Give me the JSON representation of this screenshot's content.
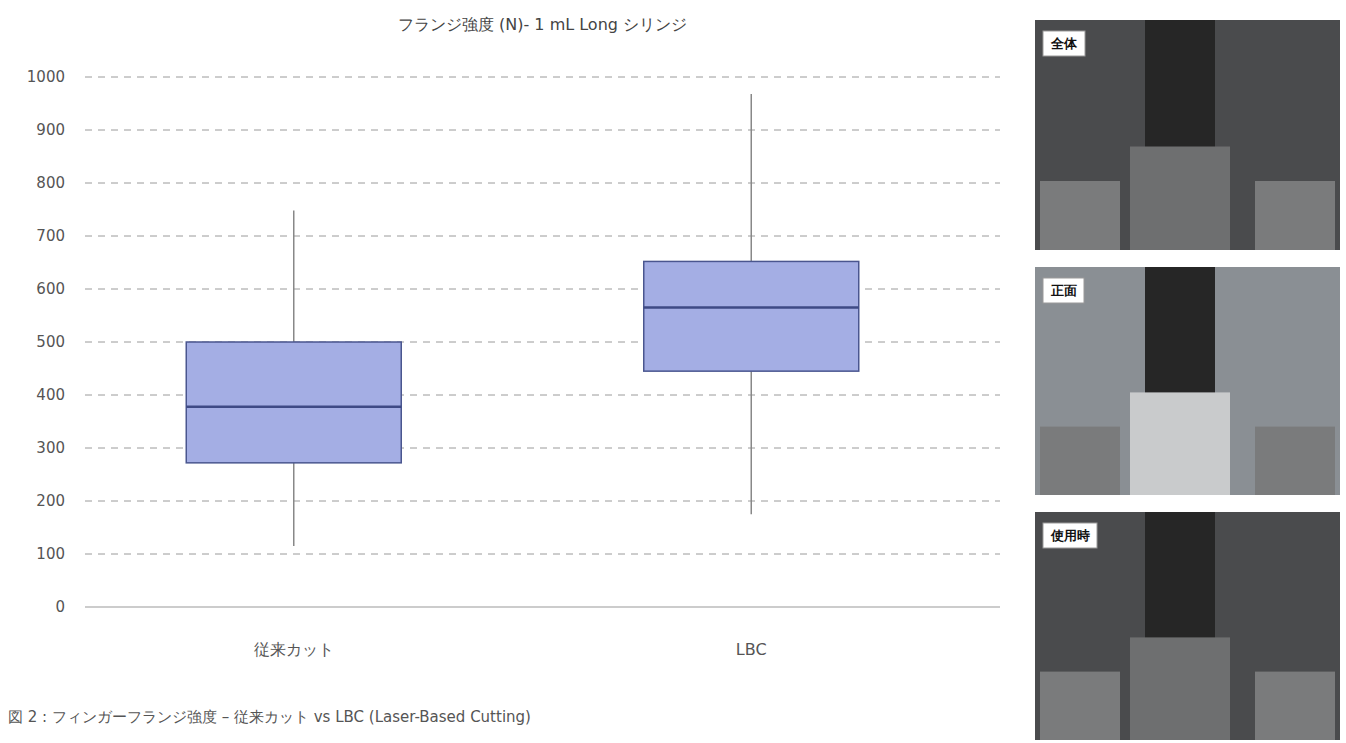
{
  "chart_data": {
    "type": "box",
    "title": "フランジ強度 (N)- 1 mL Long シリンジ",
    "categories": [
      "従来カット",
      "LBC"
    ],
    "values": [
      {
        "min": 115,
        "q1": 272,
        "median": 378,
        "q3": 500,
        "max": 748
      },
      {
        "min": 175,
        "q1": 445,
        "median": 565,
        "q3": 652,
        "max": 968
      }
    ],
    "color": "#a4aee4",
    "ylim": [
      0,
      1000
    ],
    "yticks": [
      0,
      100,
      200,
      300,
      400,
      500,
      600,
      700,
      800,
      900,
      1000
    ],
    "grid": true,
    "caption": "図 2 : フィンガーフランジ強度 – 従来カット vs LBC (Laser-Based Cutting)"
  },
  "photos": [
    {
      "label": "全体"
    },
    {
      "label": "正面"
    },
    {
      "label": "使用時"
    }
  ]
}
